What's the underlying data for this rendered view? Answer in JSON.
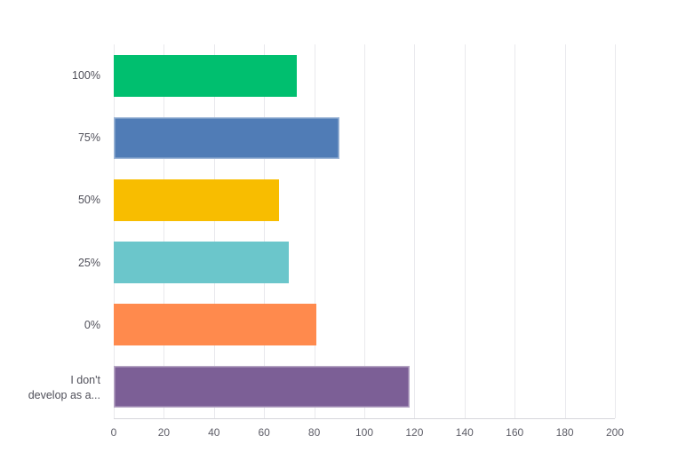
{
  "page": {
    "background": "#FFFFFF"
  },
  "chart_data": {
    "type": "bar",
    "orientation": "horizontal",
    "title": "",
    "subtitle": "",
    "xlabel": "",
    "ylabel": "",
    "categories": [
      "100%",
      "75%",
      "50%",
      "25%",
      "0%",
      "I don't\ndevelop as a..."
    ],
    "values": [
      73,
      90,
      66,
      70,
      81,
      118
    ],
    "colors": [
      "#00BF6F",
      "#507CB6",
      "#F8BD00",
      "#6BC6CB",
      "#FF8A4D",
      "#7C5F96"
    ],
    "xlim": [
      0,
      200
    ],
    "x_ticks": [
      0,
      20,
      40,
      60,
      80,
      100,
      120,
      140,
      160,
      180,
      200
    ],
    "grid": true,
    "legend": false,
    "highlighted_bars": [
      1,
      5
    ]
  },
  "styles": {
    "gridline_color": "#E9E9ED",
    "axis_line_color": "#D6D6DB",
    "category_label_color": "#50505A",
    "tick_label_color": "#5C5C66"
  }
}
